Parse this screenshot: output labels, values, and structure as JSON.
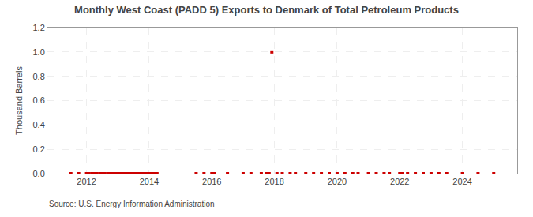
{
  "chart_data": {
    "type": "scatter",
    "title": "Monthly West Coast (PADD 5) Exports to Denmark of Total Petroleum Products",
    "ylabel": "Thousand Barrels",
    "annotation": "Source: U.S. Energy Information Administration",
    "color": "#cc0000",
    "marker": "square",
    "grid": true,
    "xlim": [
      2010.75,
      2025.75
    ],
    "ylim": [
      0.0,
      1.2
    ],
    "xticks": [
      2012,
      2014,
      2016,
      2018,
      2020,
      2022,
      2024
    ],
    "yticks": [
      {
        "value": 0.0,
        "label": "0.0"
      },
      0.2,
      0.4,
      0.6,
      0.8,
      {
        "value": 1.0,
        "label": "1.0"
      },
      1.2
    ],
    "x": [
      2011.5,
      2011.75,
      2012.0,
      2012.08,
      2012.17,
      2012.25,
      2012.33,
      2012.42,
      2012.5,
      2012.58,
      2012.67,
      2012.75,
      2012.83,
      2012.92,
      2013.0,
      2013.08,
      2013.17,
      2013.25,
      2013.33,
      2013.42,
      2013.5,
      2013.58,
      2013.67,
      2013.75,
      2013.83,
      2013.92,
      2014.0,
      2014.08,
      2014.17,
      2014.25,
      2015.5,
      2015.75,
      2016.0,
      2016.08,
      2016.5,
      2017.0,
      2017.25,
      2017.58,
      2017.75,
      2017.83,
      2017.917,
      2018.08,
      2018.25,
      2018.5,
      2018.67,
      2019.0,
      2019.25,
      2019.5,
      2019.75,
      2020.0,
      2020.25,
      2020.5,
      2020.67,
      2021.0,
      2021.25,
      2021.5,
      2021.67,
      2022.0,
      2022.08,
      2022.25,
      2022.5,
      2022.75,
      2023.0,
      2023.25,
      2023.5,
      2024.0,
      2024.5,
      2025.0
    ],
    "values": [
      0.0,
      0.0,
      0.0,
      0.0,
      0.0,
      0.0,
      0.0,
      0.0,
      0.0,
      0.0,
      0.0,
      0.0,
      0.0,
      0.0,
      0.0,
      0.0,
      0.0,
      0.0,
      0.0,
      0.0,
      0.0,
      0.0,
      0.0,
      0.0,
      0.0,
      0.0,
      0.0,
      0.0,
      0.0,
      0.0,
      0.0,
      0.0,
      0.0,
      0.0,
      0.0,
      0.0,
      0.0,
      0.0,
      0.0,
      0.0,
      1.0,
      0.0,
      0.0,
      0.0,
      0.0,
      0.0,
      0.0,
      0.0,
      0.0,
      0.0,
      0.0,
      0.0,
      0.0,
      0.0,
      0.0,
      0.0,
      0.0,
      0.0,
      0.0,
      0.0,
      0.0,
      0.0,
      0.0,
      0.0,
      0.0,
      0.0,
      0.0,
      0.0
    ]
  }
}
